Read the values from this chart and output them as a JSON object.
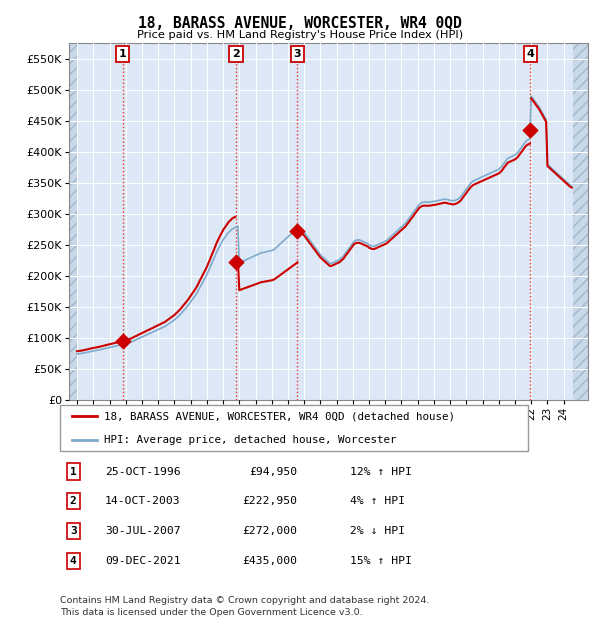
{
  "title": "18, BARASS AVENUE, WORCESTER, WR4 0QD",
  "subtitle": "Price paid vs. HM Land Registry's House Price Index (HPI)",
  "ylim": [
    0,
    575000
  ],
  "yticks": [
    0,
    50000,
    100000,
    150000,
    200000,
    250000,
    300000,
    350000,
    400000,
    450000,
    500000,
    550000
  ],
  "xlim_start": 1993.5,
  "xlim_end": 2025.5,
  "hpi_color": "#7eaacc",
  "price_color": "#cc0000",
  "dashed_line_color": "#ee3333",
  "transactions": [
    {
      "num": 1,
      "date": 1996.82,
      "price": 94950
    },
    {
      "num": 2,
      "date": 2003.79,
      "price": 222950
    },
    {
      "num": 3,
      "date": 2007.58,
      "price": 272000
    },
    {
      "num": 4,
      "date": 2021.94,
      "price": 435000
    }
  ],
  "hpi_x": [
    1994.0,
    1994.08,
    1994.17,
    1994.25,
    1994.33,
    1994.42,
    1994.5,
    1994.58,
    1994.67,
    1994.75,
    1994.83,
    1994.92,
    1995.0,
    1995.08,
    1995.17,
    1995.25,
    1995.33,
    1995.42,
    1995.5,
    1995.58,
    1995.67,
    1995.75,
    1995.83,
    1995.92,
    1996.0,
    1996.08,
    1996.17,
    1996.25,
    1996.33,
    1996.42,
    1996.5,
    1996.58,
    1996.67,
    1996.75,
    1996.83,
    1996.92,
    1997.0,
    1997.08,
    1997.17,
    1997.25,
    1997.33,
    1997.42,
    1997.5,
    1997.58,
    1997.67,
    1997.75,
    1997.83,
    1997.92,
    1998.0,
    1998.08,
    1998.17,
    1998.25,
    1998.33,
    1998.42,
    1998.5,
    1998.58,
    1998.67,
    1998.75,
    1998.83,
    1998.92,
    1999.0,
    1999.08,
    1999.17,
    1999.25,
    1999.33,
    1999.42,
    1999.5,
    1999.58,
    1999.67,
    1999.75,
    1999.83,
    1999.92,
    2000.0,
    2000.08,
    2000.17,
    2000.25,
    2000.33,
    2000.42,
    2000.5,
    2000.58,
    2000.67,
    2000.75,
    2000.83,
    2000.92,
    2001.0,
    2001.08,
    2001.17,
    2001.25,
    2001.33,
    2001.42,
    2001.5,
    2001.58,
    2001.67,
    2001.75,
    2001.83,
    2001.92,
    2002.0,
    2002.08,
    2002.17,
    2002.25,
    2002.33,
    2002.42,
    2002.5,
    2002.58,
    2002.67,
    2002.75,
    2002.83,
    2002.92,
    2003.0,
    2003.08,
    2003.17,
    2003.25,
    2003.33,
    2003.42,
    2003.5,
    2003.58,
    2003.67,
    2003.75,
    2003.83,
    2003.92,
    2004.0,
    2004.08,
    2004.17,
    2004.25,
    2004.33,
    2004.42,
    2004.5,
    2004.58,
    2004.67,
    2004.75,
    2004.83,
    2004.92,
    2005.0,
    2005.08,
    2005.17,
    2005.25,
    2005.33,
    2005.42,
    2005.5,
    2005.58,
    2005.67,
    2005.75,
    2005.83,
    2005.92,
    2006.0,
    2006.08,
    2006.17,
    2006.25,
    2006.33,
    2006.42,
    2006.5,
    2006.58,
    2006.67,
    2006.75,
    2006.83,
    2006.92,
    2007.0,
    2007.08,
    2007.17,
    2007.25,
    2007.33,
    2007.42,
    2007.5,
    2007.58,
    2007.67,
    2007.75,
    2007.83,
    2007.92,
    2008.0,
    2008.08,
    2008.17,
    2008.25,
    2008.33,
    2008.42,
    2008.5,
    2008.58,
    2008.67,
    2008.75,
    2008.83,
    2008.92,
    2009.0,
    2009.08,
    2009.17,
    2009.25,
    2009.33,
    2009.42,
    2009.5,
    2009.58,
    2009.67,
    2009.75,
    2009.83,
    2009.92,
    2010.0,
    2010.08,
    2010.17,
    2010.25,
    2010.33,
    2010.42,
    2010.5,
    2010.58,
    2010.67,
    2010.75,
    2010.83,
    2010.92,
    2011.0,
    2011.08,
    2011.17,
    2011.25,
    2011.33,
    2011.42,
    2011.5,
    2011.58,
    2011.67,
    2011.75,
    2011.83,
    2011.92,
    2012.0,
    2012.08,
    2012.17,
    2012.25,
    2012.33,
    2012.42,
    2012.5,
    2012.58,
    2012.67,
    2012.75,
    2012.83,
    2012.92,
    2013.0,
    2013.08,
    2013.17,
    2013.25,
    2013.33,
    2013.42,
    2013.5,
    2013.58,
    2013.67,
    2013.75,
    2013.83,
    2013.92,
    2014.0,
    2014.08,
    2014.17,
    2014.25,
    2014.33,
    2014.42,
    2014.5,
    2014.58,
    2014.67,
    2014.75,
    2014.83,
    2014.92,
    2015.0,
    2015.08,
    2015.17,
    2015.25,
    2015.33,
    2015.42,
    2015.5,
    2015.58,
    2015.67,
    2015.75,
    2015.83,
    2015.92,
    2016.0,
    2016.08,
    2016.17,
    2016.25,
    2016.33,
    2016.42,
    2016.5,
    2016.58,
    2016.67,
    2016.75,
    2016.83,
    2016.92,
    2017.0,
    2017.08,
    2017.17,
    2017.25,
    2017.33,
    2017.42,
    2017.5,
    2017.58,
    2017.67,
    2017.75,
    2017.83,
    2017.92,
    2018.0,
    2018.08,
    2018.17,
    2018.25,
    2018.33,
    2018.42,
    2018.5,
    2018.58,
    2018.67,
    2018.75,
    2018.83,
    2018.92,
    2019.0,
    2019.08,
    2019.17,
    2019.25,
    2019.33,
    2019.42,
    2019.5,
    2019.58,
    2019.67,
    2019.75,
    2019.83,
    2019.92,
    2020.0,
    2020.08,
    2020.17,
    2020.25,
    2020.33,
    2020.42,
    2020.5,
    2020.58,
    2020.67,
    2020.75,
    2020.83,
    2020.92,
    2021.0,
    2021.08,
    2021.17,
    2021.25,
    2021.33,
    2021.42,
    2021.5,
    2021.58,
    2021.67,
    2021.75,
    2021.83,
    2021.92,
    2022.0,
    2022.08,
    2022.17,
    2022.25,
    2022.33,
    2022.42,
    2022.5,
    2022.58,
    2022.67,
    2022.75,
    2022.83,
    2022.92,
    2023.0,
    2023.08,
    2023.17,
    2023.25,
    2023.33,
    2023.42,
    2023.5,
    2023.58,
    2023.67,
    2023.75,
    2023.83,
    2023.92,
    2024.0,
    2024.08,
    2024.17,
    2024.25,
    2024.33,
    2024.42,
    2024.5
  ],
  "hpi_y": [
    74000,
    74200,
    74500,
    74800,
    75200,
    75600,
    76000,
    76500,
    77000,
    77500,
    78000,
    78500,
    79000,
    79300,
    79700,
    80100,
    80500,
    81000,
    81500,
    82000,
    82500,
    83000,
    83500,
    84000,
    84500,
    85000,
    85500,
    86000,
    86500,
    87000,
    87500,
    88000,
    88500,
    89000,
    89500,
    90000,
    90500,
    91000,
    91800,
    92500,
    93500,
    94500,
    95500,
    96500,
    97500,
    98500,
    99500,
    100500,
    101500,
    102500,
    103500,
    104500,
    105500,
    106500,
    107500,
    108500,
    109500,
    110500,
    111500,
    112500,
    113500,
    114500,
    115500,
    116500,
    117500,
    118500,
    120000,
    121500,
    123000,
    124500,
    126000,
    127500,
    129000,
    131000,
    133000,
    135000,
    137000,
    139500,
    142000,
    144500,
    147000,
    149500,
    152000,
    155000,
    158000,
    161000,
    164000,
    167000,
    170000,
    174000,
    178000,
    182000,
    186000,
    190000,
    194000,
    198000,
    202000,
    207000,
    212000,
    217000,
    222000,
    227000,
    232000,
    237000,
    242000,
    246000,
    250000,
    254000,
    258000,
    261000,
    264000,
    267000,
    270000,
    272000,
    274000,
    276000,
    277000,
    278000,
    279000,
    280000,
    221000,
    222000,
    223000,
    224000,
    225000,
    226000,
    227000,
    228000,
    229000,
    230000,
    231000,
    232000,
    233000,
    234000,
    235000,
    236000,
    237000,
    237500,
    238000,
    238500,
    239000,
    239500,
    240000,
    240500,
    241000,
    242000,
    243000,
    245000,
    247000,
    249000,
    251000,
    253000,
    255000,
    257000,
    259000,
    261000,
    263000,
    265000,
    267000,
    269000,
    271000,
    273000,
    275000,
    277000,
    279000,
    277000,
    275000,
    272000,
    270000,
    267000,
    264000,
    261000,
    258000,
    255000,
    252000,
    249000,
    246000,
    243000,
    240000,
    237000,
    234000,
    232000,
    230000,
    228000,
    226000,
    224000,
    222000,
    220000,
    220000,
    221000,
    222000,
    223000,
    224000,
    225000,
    226000,
    228000,
    230000,
    232000,
    235000,
    238000,
    241000,
    244000,
    247000,
    250000,
    253000,
    256000,
    257000,
    258000,
    258000,
    258000,
    257000,
    256000,
    255000,
    254000,
    253000,
    252000,
    250000,
    249000,
    248000,
    248000,
    248000,
    249000,
    250000,
    251000,
    252000,
    253000,
    254000,
    255000,
    256000,
    257000,
    259000,
    261000,
    263000,
    265000,
    267000,
    269000,
    271000,
    273000,
    275000,
    277000,
    279000,
    281000,
    283000,
    285000,
    288000,
    291000,
    294000,
    297000,
    300000,
    303000,
    306000,
    309000,
    312000,
    315000,
    317000,
    318000,
    319000,
    319000,
    319000,
    319000,
    319000,
    319000,
    319500,
    320000,
    320000,
    320500,
    321000,
    321500,
    322000,
    322500,
    323000,
    323500,
    324000,
    323500,
    323000,
    322500,
    322000,
    321500,
    321000,
    321500,
    322000,
    323000,
    324000,
    326000,
    328000,
    331000,
    334000,
    337000,
    340000,
    343000,
    346000,
    349000,
    351000,
    353000,
    354000,
    355000,
    356000,
    357000,
    358000,
    359000,
    360000,
    361000,
    362000,
    363000,
    364000,
    365000,
    366000,
    367000,
    368000,
    369000,
    370000,
    371000,
    372000,
    374000,
    376000,
    379000,
    382000,
    385000,
    388000,
    390000,
    391000,
    392000,
    393000,
    394000,
    395000,
    397000,
    399000,
    402000,
    405000,
    408000,
    411000,
    414000,
    417000,
    419000,
    420000,
    421000,
    490000,
    487000,
    484000,
    481000,
    478000,
    475000,
    472000,
    468000,
    464000,
    460000,
    456000,
    452000,
    380000,
    378000,
    376000,
    374000,
    372000,
    370000,
    368000,
    366000,
    364000,
    362000,
    360000,
    358000,
    356000,
    354000,
    352000,
    350000,
    348000,
    346000,
    345000
  ],
  "legend_label1": "18, BARASS AVENUE, WORCESTER, WR4 0QD (detached house)",
  "legend_label2": "HPI: Average price, detached house, Worcester",
  "table_rows": [
    {
      "num": 1,
      "date": "25-OCT-1996",
      "price": "£94,950",
      "pct": "12%",
      "dir": "↑",
      "label": "HPI"
    },
    {
      "num": 2,
      "date": "14-OCT-2003",
      "price": "£222,950",
      "pct": "4%",
      "dir": "↑",
      "label": "HPI"
    },
    {
      "num": 3,
      "date": "30-JUL-2007",
      "price": "£272,000",
      "pct": "2%",
      "dir": "↓",
      "label": "HPI"
    },
    {
      "num": 4,
      "date": "09-DEC-2021",
      "price": "£435,000",
      "pct": "15%",
      "dir": "↑",
      "label": "HPI"
    }
  ],
  "footer": "Contains HM Land Registry data © Crown copyright and database right 2024.\nThis data is licensed under the Open Government Licence v3.0."
}
